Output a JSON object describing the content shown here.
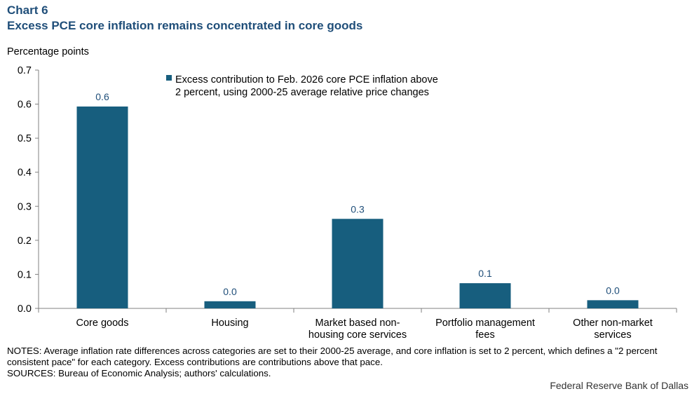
{
  "header": {
    "chart_number": "Chart 6",
    "title": "Excess PCE core inflation remains concentrated in core goods"
  },
  "colors": {
    "bar": "#175e7e",
    "title": "#1f4e79",
    "data_label": "#1f4e79",
    "axis": "#808080"
  },
  "chart_data": {
    "type": "bar",
    "title": "Excess PCE core inflation remains concentrated in core goods",
    "ylabel": "Percentage points",
    "xlabel": "",
    "ylim": [
      0,
      0.7
    ],
    "yticks": [
      0.0,
      0.1,
      0.2,
      0.3,
      0.4,
      0.5,
      0.6,
      0.7
    ],
    "ytick_labels": [
      "0.0",
      "0.1",
      "0.2",
      "0.3",
      "0.4",
      "0.5",
      "0.6",
      "0.7"
    ],
    "grid": false,
    "legend_position": "top-center",
    "categories": [
      [
        "Core goods"
      ],
      [
        "Housing"
      ],
      [
        "Market based non-",
        "housing core services"
      ],
      [
        "Portfolio management",
        "fees"
      ],
      [
        "Other non-market",
        "services"
      ]
    ],
    "series": [
      {
        "name": [
          "Excess contribution to Feb. 2026 core PCE inflation above",
          "2 percent, using 2000-25 average relative price changes"
        ],
        "values": [
          0.593,
          0.021,
          0.263,
          0.074,
          0.024
        ],
        "data_labels": [
          "0.6",
          "0.0",
          "0.3",
          "0.1",
          "0.0"
        ]
      }
    ]
  },
  "notes": {
    "notes_text": "NOTES: Average inflation rate differences across categories are set to their 2000-25 average, and core inflation is set to 2 percent, which defines a \"2 percent consistent pace\" for each category. Excess contributions are contributions above that pace.",
    "sources_text": "SOURCES: Bureau of Economic Analysis; authors' calculations."
  },
  "credit": "Federal Reserve Bank of Dallas"
}
